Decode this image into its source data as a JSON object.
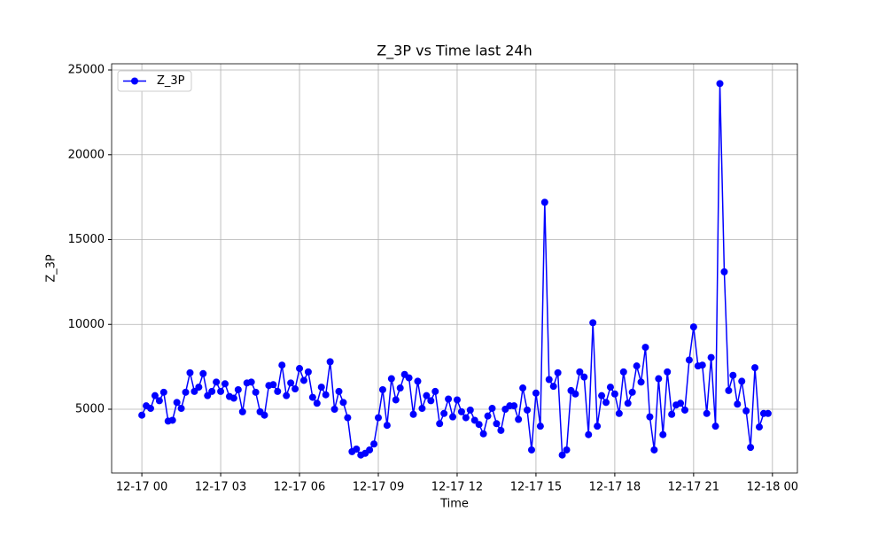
{
  "chart_data": {
    "type": "line",
    "title": "Z_3P vs Time last 24h",
    "x_label": "Time",
    "y_label": "Z_3P",
    "x": [
      0,
      10,
      20,
      30,
      40,
      50,
      60,
      70,
      80,
      90,
      100,
      110,
      120,
      130,
      140,
      150,
      160,
      170,
      180,
      190,
      200,
      210,
      220,
      230,
      240,
      250,
      260,
      270,
      280,
      290,
      300,
      310,
      320,
      330,
      340,
      350,
      360,
      370,
      380,
      390,
      400,
      410,
      420,
      430,
      440,
      450,
      460,
      470,
      480,
      490,
      500,
      510,
      520,
      530,
      540,
      550,
      560,
      570,
      580,
      590,
      600,
      610,
      620,
      630,
      640,
      650,
      660,
      670,
      680,
      690,
      700,
      710,
      720,
      730,
      740,
      750,
      760,
      770,
      780,
      790,
      800,
      810,
      820,
      830,
      840,
      850,
      860,
      870,
      880,
      890,
      900,
      910,
      920,
      930,
      940,
      950,
      960,
      970,
      980,
      990,
      1000,
      1010,
      1020,
      1030,
      1040,
      1050,
      1060,
      1070,
      1080,
      1090,
      1100,
      1110,
      1120,
      1130,
      1140,
      1150,
      1160,
      1170,
      1180,
      1190,
      1200,
      1210,
      1220,
      1230,
      1240,
      1250,
      1260,
      1270,
      1280,
      1290,
      1300,
      1310,
      1320,
      1330,
      1340,
      1350,
      1360,
      1370,
      1380,
      1390,
      1400,
      1410,
      1420,
      1430
    ],
    "series": [
      {
        "name": "Z_3P",
        "color": "#0000ff",
        "values": [
          4650,
          5200,
          5050,
          5800,
          5500,
          6000,
          4300,
          4350,
          5400,
          5050,
          6000,
          7150,
          6050,
          6300,
          7100,
          5800,
          6050,
          6600,
          6050,
          6500,
          5750,
          5650,
          6150,
          4850,
          6550,
          6600,
          6000,
          4850,
          4650,
          6400,
          6450,
          6050,
          7600,
          5800,
          6550,
          6200,
          7400,
          6700,
          7200,
          5700,
          5350,
          6300,
          5850,
          7800,
          5000,
          6050,
          5400,
          4500,
          2500,
          2650,
          2300,
          2400,
          2600,
          2950,
          4500,
          6150,
          4050,
          6800,
          5550,
          6250,
          7050,
          6850,
          4700,
          6650,
          5050,
          5800,
          5500,
          6050,
          4150,
          4750,
          5600,
          4550,
          5550,
          4850,
          4500,
          4950,
          4350,
          4100,
          3550,
          4600,
          5050,
          4150,
          3750,
          5000,
          5200,
          5200,
          4400,
          6250,
          4950,
          2600,
          5950,
          4000,
          17200,
          6750,
          6350,
          7150,
          2300,
          2600,
          6100,
          5900,
          7200,
          6900,
          3500,
          10100,
          4000,
          5800,
          5400,
          6300,
          5900,
          4750,
          7200,
          5350,
          6000,
          7550,
          6600,
          8650,
          4550,
          2600,
          6800,
          3500,
          7200,
          4700,
          5250,
          5350,
          4950,
          7900,
          9850,
          7550,
          7600,
          4750,
          8050,
          4000,
          24200,
          13100,
          6100,
          7000,
          5300,
          6650,
          4900,
          2750,
          7450,
          3950,
          4750,
          4750
        ]
      }
    ],
    "xlim": [
      -69,
      1497
    ],
    "ylim": [
      1240,
      25366
    ],
    "xticks": [
      {
        "value": 0,
        "label": "12-17 00"
      },
      {
        "value": 180,
        "label": "12-17 03"
      },
      {
        "value": 360,
        "label": "12-17 06"
      },
      {
        "value": 540,
        "label": "12-17 09"
      },
      {
        "value": 720,
        "label": "12-17 12"
      },
      {
        "value": 900,
        "label": "12-17 15"
      },
      {
        "value": 1080,
        "label": "12-17 18"
      },
      {
        "value": 1260,
        "label": "12-17 21"
      },
      {
        "value": 1440,
        "label": "12-18 00"
      }
    ],
    "yticks": [
      5000,
      10000,
      15000,
      20000,
      25000
    ],
    "grid": true,
    "legend": "upper left"
  }
}
